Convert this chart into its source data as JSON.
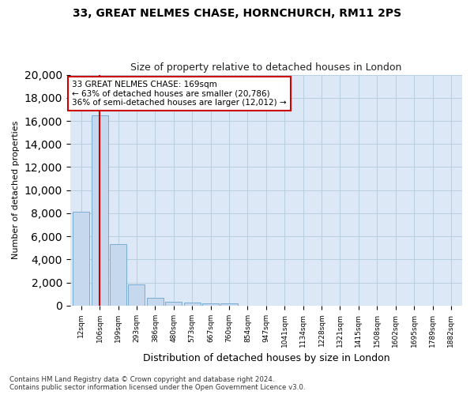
{
  "title": "33, GREAT NELMES CHASE, HORNCHURCH, RM11 2PS",
  "subtitle": "Size of property relative to detached houses in London",
  "xlabel": "Distribution of detached houses by size in London",
  "ylabel": "Number of detached properties",
  "bar_color": "#c5d8ee",
  "bar_edge_color": "#7aacd4",
  "highlight_bar_index": 1,
  "highlight_vline_color": "#cc0000",
  "annotation_box_color": "#ffffff",
  "annotation_box_edge": "#cc0000",
  "annotation_text": "33 GREAT NELMES CHASE: 169sqm\n← 63% of detached houses are smaller (20,786)\n36% of semi-detached houses are larger (12,012) →",
  "categories": [
    "12sqm",
    "106sqm",
    "199sqm",
    "293sqm",
    "386sqm",
    "480sqm",
    "573sqm",
    "667sqm",
    "760sqm",
    "854sqm",
    "947sqm",
    "1041sqm",
    "1134sqm",
    "1228sqm",
    "1321sqm",
    "1415sqm",
    "1508sqm",
    "1602sqm",
    "1695sqm",
    "1789sqm",
    "1882sqm"
  ],
  "values": [
    8100,
    16500,
    5300,
    1850,
    700,
    360,
    270,
    210,
    190,
    0,
    0,
    0,
    0,
    0,
    0,
    0,
    0,
    0,
    0,
    0,
    0
  ],
  "ylim": [
    0,
    20000
  ],
  "yticks": [
    0,
    2000,
    4000,
    6000,
    8000,
    10000,
    12000,
    14000,
    16000,
    18000,
    20000
  ],
  "figsize": [
    6.0,
    5.0
  ],
  "dpi": 100,
  "background_color": "#ffffff",
  "axes_bg_color": "#dce8f5",
  "grid_color": "#b8cfe0",
  "footer_text": "Contains HM Land Registry data © Crown copyright and database right 2024.\nContains public sector information licensed under the Open Government Licence v3.0."
}
